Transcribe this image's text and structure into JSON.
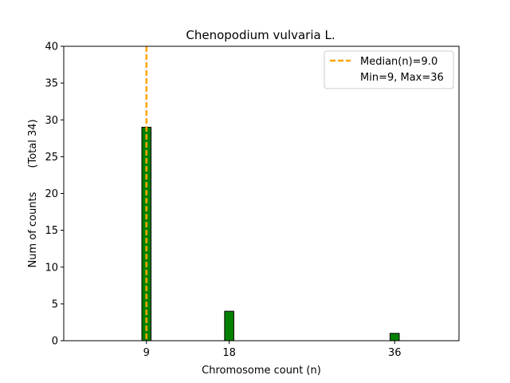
{
  "chart_data": {
    "type": "bar",
    "title": "Chenopodium vulvaria L.",
    "xlabel": "Chromosome count (n)",
    "ylabel": "Num of counts",
    "ylabel_secondary": "(Total 34)",
    "xlim": [
      0,
      43
    ],
    "ylim": [
      0,
      40
    ],
    "x_ticks": [
      9,
      18,
      36
    ],
    "x_tick_labels": [
      "9",
      "18",
      "36"
    ],
    "y_ticks": [
      0,
      5,
      10,
      15,
      20,
      25,
      30,
      35,
      40
    ],
    "y_tick_labels": [
      "0",
      "5",
      "10",
      "15",
      "20",
      "25",
      "30",
      "35",
      "40"
    ],
    "bar_width": 1,
    "bars": [
      {
        "x": 9,
        "value": 29
      },
      {
        "x": 18,
        "value": 4
      },
      {
        "x": 36,
        "value": 1
      }
    ],
    "median_line": {
      "x": 9.0,
      "label": "Median(n)=9.0"
    },
    "legend": {
      "position": "top-right",
      "entries": [
        "Median(n)=9.0",
        "Min=9, Max=36"
      ]
    },
    "colors": {
      "bar_fill": "#008000",
      "bar_edge": "#000000",
      "median": "#FFA500"
    },
    "grid": false
  }
}
